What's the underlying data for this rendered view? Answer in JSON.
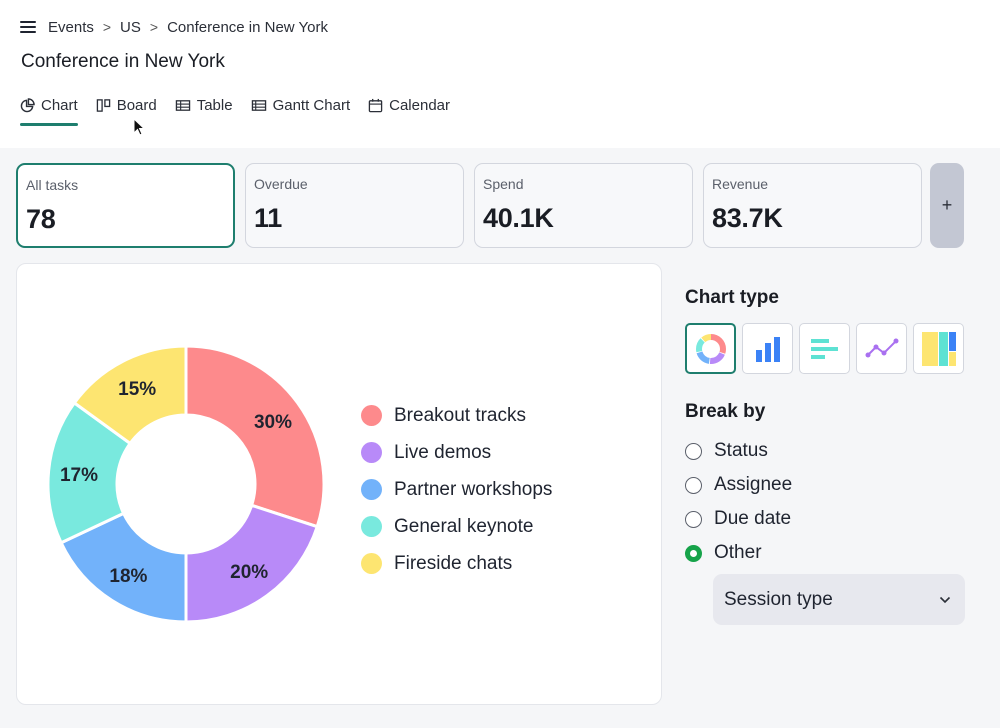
{
  "breadcrumb": {
    "items": [
      "Events",
      "US",
      "Conference in New York"
    ],
    "separator": ">"
  },
  "page_title": "Conference in New York",
  "tabs": [
    {
      "label": "Chart",
      "icon": "pie-chart-icon",
      "active": true
    },
    {
      "label": "Board",
      "icon": "board-icon",
      "active": false
    },
    {
      "label": "Table",
      "icon": "table-icon",
      "active": false
    },
    {
      "label": "Gantt Chart",
      "icon": "gantt-icon",
      "active": false
    },
    {
      "label": "Calendar",
      "icon": "calendar-icon",
      "active": false
    }
  ],
  "kpis": [
    {
      "label": "All tasks",
      "value": "78",
      "active": true
    },
    {
      "label": "Overdue",
      "value": "11"
    },
    {
      "label": "Spend",
      "value": "40.1K"
    },
    {
      "label": "Revenue",
      "value": "83.7K"
    }
  ],
  "add_kpi_label": "+",
  "chart_data": {
    "type": "pie",
    "donut": true,
    "categories": [
      "Breakout tracks",
      "Live demos",
      "Partner workshops",
      "General keynote",
      "Fireside chats"
    ],
    "values": [
      30,
      20,
      18,
      17,
      15
    ],
    "labels": [
      "30%",
      "20%",
      "18%",
      "17%",
      "15%"
    ],
    "colors": [
      "#fd8a8c",
      "#b88af8",
      "#72b2fa",
      "#79e9de",
      "#fde571"
    ],
    "legend_position": "right"
  },
  "sidebar": {
    "chart_type_heading": "Chart type",
    "chart_types": [
      {
        "icon": "donut-chart-icon",
        "active": true
      },
      {
        "icon": "bar-chart-icon"
      },
      {
        "icon": "horizontal-bar-icon"
      },
      {
        "icon": "line-chart-icon"
      },
      {
        "icon": "treemap-icon"
      }
    ],
    "break_by_heading": "Break by",
    "break_by_options": [
      {
        "label": "Status",
        "checked": false
      },
      {
        "label": "Assignee",
        "checked": false
      },
      {
        "label": "Due date",
        "checked": false
      },
      {
        "label": "Other",
        "checked": true
      }
    ],
    "select_value": "Session type"
  },
  "colors": {
    "accent": "#1e7e6e",
    "radio_checked": "#16a34a"
  }
}
